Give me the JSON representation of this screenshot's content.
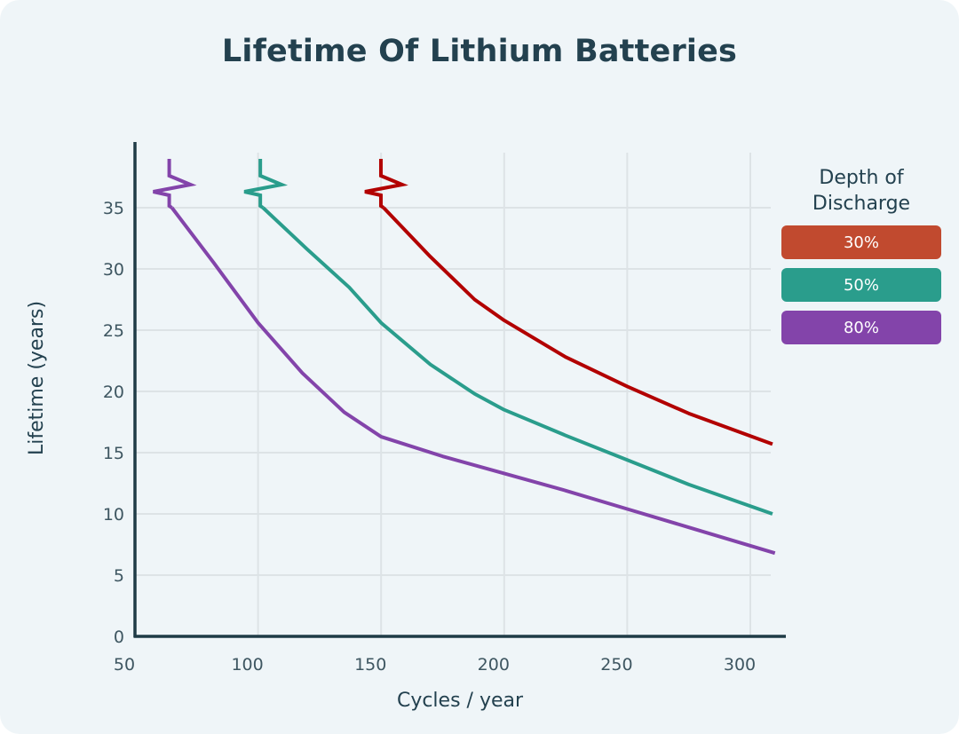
{
  "chart_data": {
    "type": "line",
    "title": "Lifetime Of Lithium Batteries",
    "xlabel": "Cycles / year",
    "ylabel": "Lifetime (years)",
    "xlim": [
      50,
      310
    ],
    "ylim": [
      0,
      39
    ],
    "x_ticks": [
      50,
      100,
      150,
      200,
      250,
      300
    ],
    "y_ticks": [
      0,
      5,
      10,
      15,
      20,
      25,
      30,
      35
    ],
    "grid": true,
    "legend": {
      "title": "Depth of Discharge",
      "placement": "right"
    },
    "series": [
      {
        "name": "30%",
        "color": "#c14a2f",
        "line_color": "#b20000",
        "start": [
          151,
          35
        ],
        "points": [
          [
            151,
            35
          ],
          [
            170,
            31
          ],
          [
            188,
            27.5
          ],
          [
            200,
            25.8
          ],
          [
            225,
            22.8
          ],
          [
            250,
            20.4
          ],
          [
            275,
            18.2
          ],
          [
            309,
            15.7
          ]
        ]
      },
      {
        "name": "50%",
        "color": "#2a9d8c",
        "line_color": "#2a9d8c",
        "start": [
          102,
          35
        ],
        "points": [
          [
            102,
            35
          ],
          [
            120,
            31.6
          ],
          [
            137,
            28.5
          ],
          [
            150,
            25.6
          ],
          [
            170,
            22.2
          ],
          [
            188,
            19.8
          ],
          [
            200,
            18.5
          ],
          [
            225,
            16.4
          ],
          [
            250,
            14.4
          ],
          [
            275,
            12.4
          ],
          [
            309,
            10
          ]
        ]
      },
      {
        "name": "80%",
        "color": "#8344aa",
        "line_color": "#8344aa",
        "start": [
          65,
          35
        ],
        "points": [
          [
            65,
            35
          ],
          [
            82,
            30.5
          ],
          [
            100,
            25.6
          ],
          [
            118,
            21.5
          ],
          [
            135,
            18.3
          ],
          [
            150,
            16.3
          ],
          [
            175,
            14.7
          ],
          [
            200,
            13.3
          ],
          [
            225,
            11.9
          ],
          [
            250,
            10.4
          ],
          [
            275,
            8.9
          ],
          [
            310,
            6.8
          ]
        ]
      }
    ]
  }
}
